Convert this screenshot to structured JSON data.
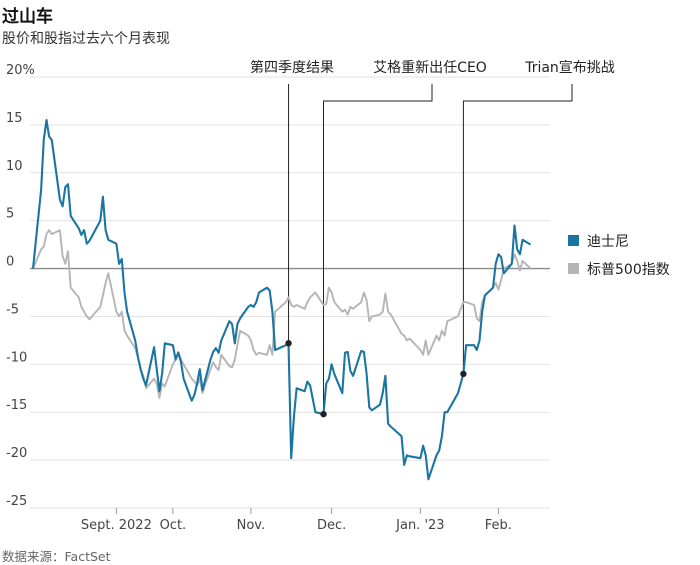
{
  "title": "过山车",
  "subtitle": "股价和股指过去六个月表现",
  "source": "数据来源：FactSet",
  "chart_data": {
    "type": "line",
    "ylim": [
      -25,
      20
    ],
    "yticks": [
      20,
      15,
      10,
      5,
      0,
      -5,
      -10,
      -15,
      -20,
      -25
    ],
    "ytick_labels": [
      "20%",
      "15",
      "10",
      "5",
      "0",
      "-5",
      "-10",
      "-15",
      "-20",
      "-25"
    ],
    "x_range": [
      "2022-08-12",
      "2023-02-10"
    ],
    "xticks": [
      {
        "date": "2022-09-12",
        "label": "Sept. 2022"
      },
      {
        "date": "2022-10-03",
        "label": "Oct."
      },
      {
        "date": "2022-11-01",
        "label": "Nov."
      },
      {
        "date": "2022-12-01",
        "label": "Dec."
      },
      {
        "date": "2023-01-03",
        "label": "Jan. '23"
      },
      {
        "date": "2023-02-01",
        "label": "Feb."
      }
    ],
    "legend_position": "right",
    "series": [
      {
        "name": "迪士尼",
        "color": "#1b75a3",
        "points": [
          [
            "2022-08-12",
            0
          ],
          [
            "2022-08-15",
            8.2
          ],
          [
            "2022-08-16",
            13.5
          ],
          [
            "2022-08-17",
            15.5
          ],
          [
            "2022-08-18",
            13.8
          ],
          [
            "2022-08-19",
            13.4
          ],
          [
            "2022-08-22",
            7.2
          ],
          [
            "2022-08-23",
            6.5
          ],
          [
            "2022-08-24",
            8.5
          ],
          [
            "2022-08-25",
            8.8
          ],
          [
            "2022-08-26",
            5.5
          ],
          [
            "2022-08-29",
            4.2
          ],
          [
            "2022-08-30",
            3.5
          ],
          [
            "2022-08-31",
            4.0
          ],
          [
            "2022-09-01",
            2.6
          ],
          [
            "2022-09-02",
            2.9
          ],
          [
            "2022-09-06",
            5.0
          ],
          [
            "2022-09-07",
            7.5
          ],
          [
            "2022-09-08",
            4.0
          ],
          [
            "2022-09-09",
            3.0
          ],
          [
            "2022-09-12",
            2.6
          ],
          [
            "2022-09-13",
            0.5
          ],
          [
            "2022-09-14",
            1.0
          ],
          [
            "2022-09-15",
            -2.5
          ],
          [
            "2022-09-16",
            -4.5
          ],
          [
            "2022-09-19",
            -7.5
          ],
          [
            "2022-09-20",
            -9.2
          ],
          [
            "2022-09-21",
            -10.5
          ],
          [
            "2022-09-22",
            -11.5
          ],
          [
            "2022-09-23",
            -12.2
          ],
          [
            "2022-09-26",
            -8.2
          ],
          [
            "2022-09-27",
            -10.5
          ],
          [
            "2022-09-28",
            -12.8
          ],
          [
            "2022-09-29",
            -11.0
          ],
          [
            "2022-09-30",
            -7.8
          ],
          [
            "2022-10-03",
            -8.0
          ],
          [
            "2022-10-04",
            -9.5
          ],
          [
            "2022-10-05",
            -8.8
          ],
          [
            "2022-10-06",
            -9.7
          ],
          [
            "2022-10-07",
            -11.5
          ],
          [
            "2022-10-10",
            -13.8
          ],
          [
            "2022-10-11",
            -13.2
          ],
          [
            "2022-10-12",
            -12.0
          ],
          [
            "2022-10-13",
            -10.5
          ],
          [
            "2022-10-14",
            -12.7
          ],
          [
            "2022-10-17",
            -9.5
          ],
          [
            "2022-10-18",
            -8.7
          ],
          [
            "2022-10-19",
            -8.3
          ],
          [
            "2022-10-20",
            -8.8
          ],
          [
            "2022-10-21",
            -7.5
          ],
          [
            "2022-10-24",
            -5.5
          ],
          [
            "2022-10-25",
            -5.8
          ],
          [
            "2022-10-26",
            -7.8
          ],
          [
            "2022-10-27",
            -5.8
          ],
          [
            "2022-10-28",
            -5.2
          ],
          [
            "2022-10-31",
            -4.0
          ],
          [
            "2022-11-01",
            -3.8
          ],
          [
            "2022-11-02",
            -4.0
          ],
          [
            "2022-11-03",
            -3.5
          ],
          [
            "2022-11-04",
            -2.5
          ],
          [
            "2022-11-07",
            -2.0
          ],
          [
            "2022-11-08",
            -2.3
          ],
          [
            "2022-11-09",
            -4.5
          ],
          [
            "2022-11-10",
            -8.5
          ],
          [
            "2022-11-14",
            -8.0
          ],
          [
            "2022-11-15",
            -7.8
          ],
          [
            "2022-11-16",
            -19.8
          ],
          [
            "2022-11-17",
            -15.5
          ],
          [
            "2022-11-18",
            -12.5
          ],
          [
            "2022-11-21",
            -12.8
          ],
          [
            "2022-11-22",
            -11.8
          ],
          [
            "2022-11-23",
            -12.2
          ],
          [
            "2022-11-25",
            -15.0
          ],
          [
            "2022-11-28",
            -15.2
          ],
          [
            "2022-11-29",
            -12.0
          ],
          [
            "2022-11-30",
            -11.5
          ],
          [
            "2022-12-01",
            -10.0
          ],
          [
            "2022-12-02",
            -11.0
          ],
          [
            "2022-12-05",
            -13.0
          ],
          [
            "2022-12-06",
            -8.8
          ],
          [
            "2022-12-07",
            -8.7
          ],
          [
            "2022-12-08",
            -10.7
          ],
          [
            "2022-12-09",
            -11.2
          ],
          [
            "2022-12-12",
            -8.6
          ],
          [
            "2022-12-13",
            -8.7
          ],
          [
            "2022-12-14",
            -11.0
          ],
          [
            "2022-12-15",
            -14.5
          ],
          [
            "2022-12-16",
            -14.8
          ],
          [
            "2022-12-19",
            -14.2
          ],
          [
            "2022-12-20",
            -13.0
          ],
          [
            "2022-12-21",
            -11.2
          ],
          [
            "2022-12-22",
            -16.2
          ],
          [
            "2022-12-23",
            -16.5
          ],
          [
            "2022-12-27",
            -17.5
          ],
          [
            "2022-12-28",
            -20.5
          ],
          [
            "2022-12-29",
            -19.5
          ],
          [
            "2022-12-30",
            -19.6
          ],
          [
            "2023-01-03",
            -19.8
          ],
          [
            "2023-01-04",
            -18.5
          ],
          [
            "2023-01-05",
            -19.5
          ],
          [
            "2023-01-06",
            -22.0
          ],
          [
            "2023-01-09",
            -19.5
          ],
          [
            "2023-01-10",
            -19.0
          ],
          [
            "2023-01-11",
            -17.5
          ],
          [
            "2023-01-12",
            -15.0
          ],
          [
            "2023-01-13",
            -15.0
          ],
          [
            "2023-01-17",
            -13.0
          ],
          [
            "2023-01-18",
            -12.0
          ],
          [
            "2023-01-19",
            -11.0
          ],
          [
            "2023-01-20",
            -8.0
          ],
          [
            "2023-01-23",
            -8.0
          ],
          [
            "2023-01-24",
            -8.5
          ],
          [
            "2023-01-25",
            -7.5
          ],
          [
            "2023-01-26",
            -4.5
          ],
          [
            "2023-01-27",
            -2.8
          ],
          [
            "2023-01-30",
            -2.0
          ],
          [
            "2023-01-31",
            0.5
          ],
          [
            "2023-02-01",
            1.5
          ],
          [
            "2023-02-02",
            1.2
          ],
          [
            "2023-02-03",
            -0.5
          ],
          [
            "2023-02-06",
            0.5
          ],
          [
            "2023-02-07",
            4.5
          ],
          [
            "2023-02-08",
            2.0
          ],
          [
            "2023-02-09",
            1.5
          ],
          [
            "2023-02-10",
            3.0
          ],
          [
            "2023-02-13",
            2.5
          ]
        ]
      },
      {
        "name": "标普500指数",
        "color": "#b5b5b5",
        "points": [
          [
            "2022-08-12",
            0
          ],
          [
            "2022-08-15",
            2.0
          ],
          [
            "2022-08-16",
            2.3
          ],
          [
            "2022-08-17",
            3.6
          ],
          [
            "2022-08-18",
            4.0
          ],
          [
            "2022-08-19",
            3.6
          ],
          [
            "2022-08-22",
            4.0
          ],
          [
            "2022-08-23",
            1.3
          ],
          [
            "2022-08-24",
            0.5
          ],
          [
            "2022-08-25",
            1.8
          ],
          [
            "2022-08-26",
            -2.0
          ],
          [
            "2022-08-29",
            -3.0
          ],
          [
            "2022-08-30",
            -4.0
          ],
          [
            "2022-08-31",
            -4.5
          ],
          [
            "2022-09-01",
            -5.0
          ],
          [
            "2022-09-02",
            -5.3
          ],
          [
            "2022-09-06",
            -4.0
          ],
          [
            "2022-09-07",
            -2.8
          ],
          [
            "2022-09-08",
            -1.5
          ],
          [
            "2022-09-09",
            -0.5
          ],
          [
            "2022-09-12",
            -4.5
          ],
          [
            "2022-09-13",
            -5.0
          ],
          [
            "2022-09-14",
            -4.5
          ],
          [
            "2022-09-15",
            -6.5
          ],
          [
            "2022-09-16",
            -7.0
          ],
          [
            "2022-09-19",
            -8.3
          ],
          [
            "2022-09-20",
            -9.3
          ],
          [
            "2022-09-21",
            -10.5
          ],
          [
            "2022-09-22",
            -11.2
          ],
          [
            "2022-09-23",
            -12.5
          ],
          [
            "2022-09-26",
            -11.5
          ],
          [
            "2022-09-27",
            -12.0
          ],
          [
            "2022-09-28",
            -13.5
          ],
          [
            "2022-09-29",
            -12.0
          ],
          [
            "2022-09-30",
            -12.3
          ],
          [
            "2022-10-03",
            -10.0
          ],
          [
            "2022-10-04",
            -9.5
          ],
          [
            "2022-10-05",
            -8.7
          ],
          [
            "2022-10-06",
            -9.5
          ],
          [
            "2022-10-07",
            -10.0
          ],
          [
            "2022-10-10",
            -11.5
          ],
          [
            "2022-10-11",
            -11.8
          ],
          [
            "2022-10-12",
            -12.2
          ],
          [
            "2022-10-13",
            -11.5
          ],
          [
            "2022-10-14",
            -13.0
          ],
          [
            "2022-10-17",
            -10.5
          ],
          [
            "2022-10-18",
            -9.8
          ],
          [
            "2022-10-19",
            -10.3
          ],
          [
            "2022-10-20",
            -10.6
          ],
          [
            "2022-10-21",
            -9.0
          ],
          [
            "2022-10-24",
            -10.2
          ],
          [
            "2022-10-25",
            -10.3
          ],
          [
            "2022-10-26",
            -9.5
          ],
          [
            "2022-10-27",
            -8.0
          ],
          [
            "2022-10-28",
            -6.5
          ],
          [
            "2022-10-31",
            -7.0
          ],
          [
            "2022-11-01",
            -7.5
          ],
          [
            "2022-11-02",
            -8.5
          ],
          [
            "2022-11-03",
            -9.0
          ],
          [
            "2022-11-04",
            -8.8
          ],
          [
            "2022-11-07",
            -9.0
          ],
          [
            "2022-11-08",
            -8.0
          ],
          [
            "2022-11-09",
            -9.0
          ],
          [
            "2022-11-10",
            -4.5
          ],
          [
            "2022-11-14",
            -3.5
          ],
          [
            "2022-11-15",
            -3.0
          ],
          [
            "2022-11-16",
            -3.8
          ],
          [
            "2022-11-17",
            -4.0
          ],
          [
            "2022-11-18",
            -3.8
          ],
          [
            "2022-11-21",
            -4.2
          ],
          [
            "2022-11-22",
            -3.5
          ],
          [
            "2022-11-23",
            -3.0
          ],
          [
            "2022-11-25",
            -2.5
          ],
          [
            "2022-11-28",
            -3.8
          ],
          [
            "2022-11-29",
            -3.7
          ],
          [
            "2022-11-30",
            -2.0
          ],
          [
            "2022-12-01",
            -2.5
          ],
          [
            "2022-12-02",
            -3.5
          ],
          [
            "2022-12-05",
            -4.5
          ],
          [
            "2022-12-06",
            -4.3
          ],
          [
            "2022-12-07",
            -4.8
          ],
          [
            "2022-12-08",
            -4.0
          ],
          [
            "2022-12-09",
            -4.2
          ],
          [
            "2022-12-12",
            -3.5
          ],
          [
            "2022-12-13",
            -2.5
          ],
          [
            "2022-12-14",
            -3.3
          ],
          [
            "2022-12-15",
            -5.5
          ],
          [
            "2022-12-16",
            -5.0
          ],
          [
            "2022-12-19",
            -4.8
          ],
          [
            "2022-12-20",
            -4.5
          ],
          [
            "2022-12-21",
            -2.6
          ],
          [
            "2022-12-22",
            -4.5
          ],
          [
            "2022-12-23",
            -4.8
          ],
          [
            "2022-12-27",
            -6.8
          ],
          [
            "2022-12-28",
            -7.0
          ],
          [
            "2022-12-29",
            -7.5
          ],
          [
            "2022-12-30",
            -7.3
          ],
          [
            "2023-01-03",
            -8.5
          ],
          [
            "2023-01-04",
            -9.0
          ],
          [
            "2023-01-05",
            -7.5
          ],
          [
            "2023-01-06",
            -9.0
          ],
          [
            "2023-01-09",
            -7.0
          ],
          [
            "2023-01-10",
            -7.5
          ],
          [
            "2023-01-11",
            -6.5
          ],
          [
            "2023-01-12",
            -7.0
          ],
          [
            "2023-01-13",
            -5.5
          ],
          [
            "2023-01-17",
            -5.0
          ],
          [
            "2023-01-18",
            -4.2
          ],
          [
            "2023-01-19",
            -3.5
          ],
          [
            "2023-01-20",
            -3.5
          ],
          [
            "2023-01-23",
            -3.8
          ],
          [
            "2023-01-24",
            -5.2
          ],
          [
            "2023-01-25",
            -5.5
          ],
          [
            "2023-01-26",
            -3.5
          ],
          [
            "2023-01-27",
            -2.8
          ],
          [
            "2023-01-30",
            -2.0
          ],
          [
            "2023-01-31",
            -1.5
          ],
          [
            "2023-02-01",
            -2.2
          ],
          [
            "2023-02-02",
            -1.2
          ],
          [
            "2023-02-03",
            0.0
          ],
          [
            "2023-02-06",
            0.5
          ],
          [
            "2023-02-07",
            1.5
          ],
          [
            "2023-02-08",
            0.8
          ],
          [
            "2023-02-09",
            -0.2
          ],
          [
            "2023-02-10",
            0.8
          ],
          [
            "2023-02-13",
            0.0
          ]
        ]
      }
    ],
    "annotations": [
      {
        "label": "第四季度结果",
        "date": "2022-11-15",
        "value": -7.8
      },
      {
        "label": "艾格重新出任CEO",
        "date": "2022-11-28",
        "value": -15.2
      },
      {
        "label": "Trian宣布挑战",
        "date": "2023-01-19",
        "value": -11.0
      }
    ]
  }
}
